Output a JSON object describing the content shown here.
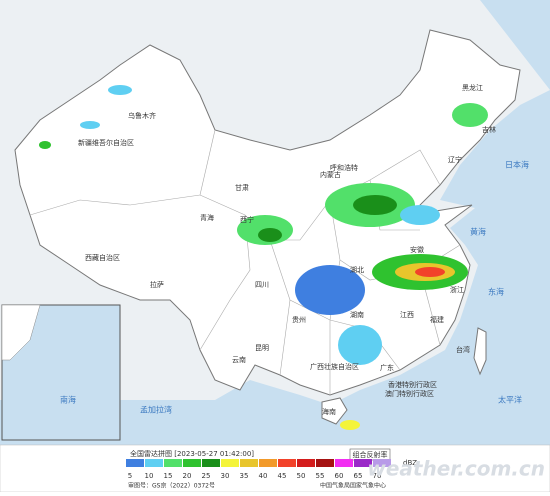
{
  "map": {
    "labels": [
      "乌鲁木齐",
      "新疆维吾尔自治区",
      "西藏自治区",
      "拉萨",
      "青海",
      "西宁",
      "甘肃",
      "内蒙古",
      "呼和浩特",
      "黑龙江",
      "吉林",
      "辽宁",
      "四川",
      "云南",
      "昆明",
      "贵州",
      "广西壮族自治区",
      "广东",
      "湖南",
      "湖北",
      "江西",
      "福建",
      "浙江",
      "安徽",
      "台湾",
      "海南",
      "香港特别行政区",
      "澳门特别行政区"
    ],
    "seas": [
      "日本海",
      "黄海",
      "东海",
      "太平洋",
      "南海",
      "孟加拉湾"
    ]
  },
  "legend": {
    "title": "全国雷达拼图",
    "timestamp": "[2023-05-27 01:42:00]",
    "product": "组合反射率",
    "unit": "dBZ",
    "scale": [
      {
        "value": 5,
        "color": "#3f7fe0"
      },
      {
        "value": 10,
        "color": "#5fcff2"
      },
      {
        "value": 15,
        "color": "#52e06a"
      },
      {
        "value": 20,
        "color": "#2fc22f"
      },
      {
        "value": 25,
        "color": "#1a8f1a"
      },
      {
        "value": 30,
        "color": "#f4f43a"
      },
      {
        "value": 35,
        "color": "#e8c52c"
      },
      {
        "value": 40,
        "color": "#f29a2a"
      },
      {
        "value": 45,
        "color": "#f2422a"
      },
      {
        "value": 50,
        "color": "#d41c1c"
      },
      {
        "value": 55,
        "color": "#a51212"
      },
      {
        "value": 60,
        "color": "#f22ef2"
      },
      {
        "value": 65,
        "color": "#9a28c8"
      },
      {
        "value": 70,
        "color": "#b89ae8"
      }
    ]
  },
  "footer": {
    "approval": "审图号：GS京（2022）0372号",
    "issuer": "中国气象局国家气象中心"
  },
  "watermark": "weather.com.cn"
}
